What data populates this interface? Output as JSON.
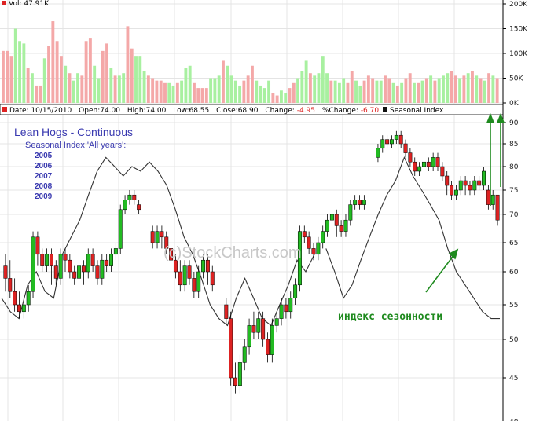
{
  "chart_data": {
    "type": "candlestick",
    "title": "Lean Hogs - Continuous",
    "subtitle": "Seasonal Index 'All years':",
    "legend_years": [
      "2005",
      "2006",
      "2007",
      "2008",
      "2009"
    ],
    "watermark": "(c)StockCharts.com",
    "annotation": "индекс сезонности",
    "volume_label": "Vol: 47.91K",
    "info_bar": {
      "date": "Date: 10/15/2010",
      "open": "Open:74.00",
      "high": "High:74.00",
      "low": "Low:68.55",
      "close": "Close:68.90",
      "change_label": "Change:",
      "change": "-4.95",
      "pct_label": "%Change:",
      "pct": "-6.70",
      "seasonal_label": "Seasonal Index"
    },
    "price_ticks": [
      "90",
      "85",
      "80",
      "75",
      "70",
      "65",
      "60",
      "55",
      "50",
      "45"
    ],
    "volume_ticks": [
      "200K",
      "150K",
      "100K",
      "50K",
      "0K"
    ],
    "price_axis_bottom_label": "40",
    "colors": {
      "up": "#22bb22",
      "down": "#dd2222",
      "vol_up": "#a8f0a0",
      "vol_down": "#f4a8a8",
      "seasonal": "#333333",
      "annotation": "#1e8a1e",
      "title": "#3a3ab0"
    },
    "volume": [
      {
        "v": 105,
        "up": false
      },
      {
        "v": 105,
        "up": false
      },
      {
        "v": 95,
        "up": false
      },
      {
        "v": 150,
        "up": true
      },
      {
        "v": 125,
        "up": true
      },
      {
        "v": 120,
        "up": true
      },
      {
        "v": 70,
        "up": false
      },
      {
        "v": 60,
        "up": true
      },
      {
        "v": 35,
        "up": false
      },
      {
        "v": 35,
        "up": false
      },
      {
        "v": 90,
        "up": true
      },
      {
        "v": 115,
        "up": false
      },
      {
        "v": 165,
        "up": false
      },
      {
        "v": 125,
        "up": false
      },
      {
        "v": 95,
        "up": false
      },
      {
        "v": 75,
        "up": true
      },
      {
        "v": 60,
        "up": false
      },
      {
        "v": 45,
        "up": true
      },
      {
        "v": 60,
        "up": true
      },
      {
        "v": 55,
        "up": false
      },
      {
        "v": 125,
        "up": false
      },
      {
        "v": 130,
        "up": false
      },
      {
        "v": 75,
        "up": true
      },
      {
        "v": 50,
        "up": true
      },
      {
        "v": 105,
        "up": false
      },
      {
        "v": 120,
        "up": false
      },
      {
        "v": 70,
        "up": true
      },
      {
        "v": 55,
        "up": false
      },
      {
        "v": 55,
        "up": true
      },
      {
        "v": 60,
        "up": true
      },
      {
        "v": 155,
        "up": false
      },
      {
        "v": 110,
        "up": false
      },
      {
        "v": 95,
        "up": true
      },
      {
        "v": 95,
        "up": true
      },
      {
        "v": 65,
        "up": true
      },
      {
        "v": 55,
        "up": false
      },
      {
        "v": 50,
        "up": false
      },
      {
        "v": 45,
        "up": false
      },
      {
        "v": 45,
        "up": false
      },
      {
        "v": 40,
        "up": false
      },
      {
        "v": 40,
        "up": true
      },
      {
        "v": 35,
        "up": true
      },
      {
        "v": 40,
        "up": false
      },
      {
        "v": 45,
        "up": true
      },
      {
        "v": 70,
        "up": true
      },
      {
        "v": 75,
        "up": true
      },
      {
        "v": 40,
        "up": false
      },
      {
        "v": 30,
        "up": false
      },
      {
        "v": 30,
        "up": false
      },
      {
        "v": 30,
        "up": false
      },
      {
        "v": 50,
        "up": true
      },
      {
        "v": 50,
        "up": true
      },
      {
        "v": 55,
        "up": true
      },
      {
        "v": 85,
        "up": false
      },
      {
        "v": 75,
        "up": true
      },
      {
        "v": 55,
        "up": true
      },
      {
        "v": 45,
        "up": true
      },
      {
        "v": 35,
        "up": true
      },
      {
        "v": 45,
        "up": false
      },
      {
        "v": 55,
        "up": false
      },
      {
        "v": 75,
        "up": false
      },
      {
        "v": 45,
        "up": true
      },
      {
        "v": 35,
        "up": true
      },
      {
        "v": 30,
        "up": true
      },
      {
        "v": 45,
        "up": true
      },
      {
        "v": 20,
        "up": false
      },
      {
        "v": 15,
        "up": false
      },
      {
        "v": 25,
        "up": true
      },
      {
        "v": 20,
        "up": true
      },
      {
        "v": 30,
        "up": false
      },
      {
        "v": 40,
        "up": false
      },
      {
        "v": 50,
        "up": true
      },
      {
        "v": 65,
        "up": true
      },
      {
        "v": 85,
        "up": true
      },
      {
        "v": 60,
        "up": false
      },
      {
        "v": 55,
        "up": true
      },
      {
        "v": 60,
        "up": true
      },
      {
        "v": 95,
        "up": true
      },
      {
        "v": 60,
        "up": true
      },
      {
        "v": 45,
        "up": false
      },
      {
        "v": 45,
        "up": true
      },
      {
        "v": 40,
        "up": true
      },
      {
        "v": 50,
        "up": true
      },
      {
        "v": 40,
        "up": false
      },
      {
        "v": 65,
        "up": false
      },
      {
        "v": 45,
        "up": true
      },
      {
        "v": 35,
        "up": true
      },
      {
        "v": 45,
        "up": false
      },
      {
        "v": 55,
        "up": false
      },
      {
        "v": 50,
        "up": false
      },
      {
        "v": 45,
        "up": true
      },
      {
        "v": 45,
        "up": true
      },
      {
        "v": 55,
        "up": false
      },
      {
        "v": 50,
        "up": false
      },
      {
        "v": 40,
        "up": true
      },
      {
        "v": 35,
        "up": false
      },
      {
        "v": 40,
        "up": true
      },
      {
        "v": 50,
        "up": false
      },
      {
        "v": 60,
        "up": false
      },
      {
        "v": 40,
        "up": true
      },
      {
        "v": 40,
        "up": false
      },
      {
        "v": 45,
        "up": true
      },
      {
        "v": 50,
        "up": false
      },
      {
        "v": 55,
        "up": true
      },
      {
        "v": 45,
        "up": false
      },
      {
        "v": 50,
        "up": true
      },
      {
        "v": 55,
        "up": true
      },
      {
        "v": 60,
        "up": true
      },
      {
        "v": 65,
        "up": false
      },
      {
        "v": 55,
        "up": false
      },
      {
        "v": 50,
        "up": true
      },
      {
        "v": 55,
        "up": false
      },
      {
        "v": 60,
        "up": true
      },
      {
        "v": 65,
        "up": false
      },
      {
        "v": 55,
        "up": true
      },
      {
        "v": 50,
        "up": false
      },
      {
        "v": 45,
        "up": true
      },
      {
        "v": 60,
        "up": false
      },
      {
        "v": 55,
        "up": true
      },
      {
        "v": 50,
        "up": false
      }
    ],
    "candles": [
      {
        "o": 61,
        "c": 59,
        "h": 63,
        "l": 57
      },
      {
        "o": 59,
        "c": 57,
        "h": 62,
        "l": 56
      },
      {
        "o": 57,
        "c": 55,
        "h": 59,
        "l": 54
      },
      {
        "o": 55,
        "c": 54,
        "h": 57,
        "l": 53
      },
      {
        "o": 54,
        "c": 55,
        "h": 56,
        "l": 53
      },
      {
        "o": 55,
        "c": 57,
        "h": 58,
        "l": 54
      },
      {
        "o": 57,
        "c": 66,
        "h": 67,
        "l": 56
      },
      {
        "o": 66,
        "c": 63,
        "h": 67,
        "l": 61
      },
      {
        "o": 63,
        "c": 61,
        "h": 64,
        "l": 60
      },
      {
        "o": 61,
        "c": 63,
        "h": 64,
        "l": 60
      },
      {
        "o": 63,
        "c": 61,
        "h": 64,
        "l": 58
      },
      {
        "o": 61,
        "c": 59,
        "h": 62,
        "l": 58
      },
      {
        "o": 59,
        "c": 63,
        "h": 64,
        "l": 58
      },
      {
        "o": 63,
        "c": 62,
        "h": 64,
        "l": 60
      },
      {
        "o": 62,
        "c": 60,
        "h": 63,
        "l": 59
      },
      {
        "o": 60,
        "c": 59,
        "h": 61,
        "l": 58
      },
      {
        "o": 59,
        "c": 61,
        "h": 62,
        "l": 58
      },
      {
        "o": 61,
        "c": 60,
        "h": 62,
        "l": 58
      },
      {
        "o": 60,
        "c": 63,
        "h": 64,
        "l": 59
      },
      {
        "o": 63,
        "c": 61,
        "h": 64,
        "l": 60
      },
      {
        "o": 61,
        "c": 59,
        "h": 62,
        "l": 58
      },
      {
        "o": 59,
        "c": 62,
        "h": 63,
        "l": 58
      },
      {
        "o": 62,
        "c": 61,
        "h": 63,
        "l": 60
      },
      {
        "o": 61,
        "c": 63,
        "h": 64,
        "l": 60
      },
      {
        "o": 63,
        "c": 64,
        "h": 65,
        "l": 62
      },
      {
        "o": 64,
        "c": 71,
        "h": 72,
        "l": 63
      },
      {
        "o": 71,
        "c": 73,
        "h": 74,
        "l": 70
      },
      {
        "o": 73,
        "c": 74,
        "h": 75,
        "l": 72
      },
      {
        "o": 74,
        "c": 73,
        "h": 75,
        "l": 72
      },
      {
        "o": 72,
        "c": 71,
        "h": 73,
        "l": 70
      },
      {
        "o": 67,
        "c": 65,
        "h": 68,
        "l": 64
      },
      {
        "o": 65,
        "c": 67,
        "h": 68,
        "l": 64
      },
      {
        "o": 67,
        "c": 66,
        "h": 68,
        "l": 64
      },
      {
        "o": 66,
        "c": 64,
        "h": 67,
        "l": 63
      },
      {
        "o": 64,
        "c": 62,
        "h": 65,
        "l": 61
      },
      {
        "o": 62,
        "c": 60,
        "h": 63,
        "l": 59
      },
      {
        "o": 60,
        "c": 58,
        "h": 62,
        "l": 57
      },
      {
        "o": 58,
        "c": 61,
        "h": 62,
        "l": 57
      },
      {
        "o": 61,
        "c": 59,
        "h": 62,
        "l": 58
      },
      {
        "o": 59,
        "c": 57,
        "h": 60,
        "l": 56
      },
      {
        "o": 57,
        "c": 60,
        "h": 61,
        "l": 56
      },
      {
        "o": 60,
        "c": 62,
        "h": 63,
        "l": 59
      },
      {
        "o": 62,
        "c": 60,
        "h": 63,
        "l": 58
      },
      {
        "o": 60,
        "c": 58,
        "h": 61,
        "l": 57
      },
      {
        "o": 55,
        "c": 53,
        "h": 56,
        "l": 52
      },
      {
        "o": 53,
        "c": 45,
        "h": 54,
        "l": 44
      },
      {
        "o": 45,
        "c": 44,
        "h": 47,
        "l": 43
      },
      {
        "o": 44,
        "c": 47,
        "h": 48,
        "l": 43
      },
      {
        "o": 47,
        "c": 49,
        "h": 50,
        "l": 46
      },
      {
        "o": 49,
        "c": 52,
        "h": 53,
        "l": 48
      },
      {
        "o": 52,
        "c": 51,
        "h": 54,
        "l": 50
      },
      {
        "o": 51,
        "c": 53,
        "h": 54,
        "l": 50
      },
      {
        "o": 53,
        "c": 50,
        "h": 54,
        "l": 49
      },
      {
        "o": 50,
        "c": 48,
        "h": 51,
        "l": 47
      },
      {
        "o": 48,
        "c": 52,
        "h": 53,
        "l": 47
      },
      {
        "o": 52,
        "c": 53,
        "h": 54,
        "l": 51
      },
      {
        "o": 53,
        "c": 55,
        "h": 56,
        "l": 52
      },
      {
        "o": 55,
        "c": 54,
        "h": 56,
        "l": 53
      },
      {
        "o": 54,
        "c": 56,
        "h": 57,
        "l": 53
      },
      {
        "o": 56,
        "c": 58,
        "h": 59,
        "l": 55
      },
      {
        "o": 58,
        "c": 67,
        "h": 68,
        "l": 57
      },
      {
        "o": 67,
        "c": 66,
        "h": 68,
        "l": 65
      },
      {
        "o": 66,
        "c": 64,
        "h": 67,
        "l": 63
      },
      {
        "o": 64,
        "c": 63,
        "h": 65,
        "l": 62
      },
      {
        "o": 63,
        "c": 65,
        "h": 66,
        "l": 62
      },
      {
        "o": 65,
        "c": 67,
        "h": 68,
        "l": 64
      },
      {
        "o": 67,
        "c": 69,
        "h": 70,
        "l": 66
      },
      {
        "o": 69,
        "c": 70,
        "h": 71,
        "l": 68
      },
      {
        "o": 70,
        "c": 68,
        "h": 71,
        "l": 66
      },
      {
        "o": 68,
        "c": 67,
        "h": 69,
        "l": 66
      },
      {
        "o": 67,
        "c": 69,
        "h": 70,
        "l": 66
      },
      {
        "o": 69,
        "c": 72,
        "h": 73,
        "l": 68
      },
      {
        "o": 72,
        "c": 73,
        "h": 74,
        "l": 71
      },
      {
        "o": 73,
        "c": 72,
        "h": 74,
        "l": 71
      },
      {
        "o": 72,
        "c": 73,
        "h": 74,
        "l": 71
      },
      {
        "o": 82,
        "c": 84,
        "h": 85,
        "l": 81
      },
      {
        "o": 84,
        "c": 86,
        "h": 87,
        "l": 83
      },
      {
        "o": 86,
        "c": 85,
        "h": 87,
        "l": 84
      },
      {
        "o": 85,
        "c": 86,
        "h": 87,
        "l": 84
      },
      {
        "o": 86,
        "c": 87,
        "h": 88,
        "l": 85
      },
      {
        "o": 87,
        "c": 85,
        "h": 88,
        "l": 84
      },
      {
        "o": 85,
        "c": 83,
        "h": 86,
        "l": 82
      },
      {
        "o": 83,
        "c": 81,
        "h": 84,
        "l": 80
      },
      {
        "o": 81,
        "c": 79,
        "h": 82,
        "l": 78
      },
      {
        "o": 79,
        "c": 80,
        "h": 81,
        "l": 78
      },
      {
        "o": 80,
        "c": 81,
        "h": 82,
        "l": 79
      },
      {
        "o": 81,
        "c": 80,
        "h": 82,
        "l": 79
      },
      {
        "o": 80,
        "c": 82,
        "h": 83,
        "l": 79
      },
      {
        "o": 82,
        "c": 80,
        "h": 83,
        "l": 79
      },
      {
        "o": 80,
        "c": 78,
        "h": 81,
        "l": 77
      },
      {
        "o": 78,
        "c": 76,
        "h": 79,
        "l": 74
      },
      {
        "o": 76,
        "c": 74,
        "h": 77,
        "l": 73
      },
      {
        "o": 74,
        "c": 75,
        "h": 76,
        "l": 73
      },
      {
        "o": 75,
        "c": 77,
        "h": 78,
        "l": 74
      },
      {
        "o": 77,
        "c": 76,
        "h": 78,
        "l": 74
      },
      {
        "o": 76,
        "c": 75,
        "h": 77,
        "l": 74
      },
      {
        "o": 75,
        "c": 77,
        "h": 78,
        "l": 74
      },
      {
        "o": 77,
        "c": 76,
        "h": 78,
        "l": 75
      },
      {
        "o": 76,
        "c": 79,
        "h": 80,
        "l": 75
      },
      {
        "o": 75,
        "c": 72,
        "h": 76,
        "l": 71
      },
      {
        "o": 72,
        "c": 74,
        "h": 75,
        "l": 71
      },
      {
        "o": 74,
        "c": 69,
        "h": 74,
        "l": 68
      }
    ],
    "candle_gaps_after": [
      29,
      43,
      74
    ],
    "seasonal_segments": [
      [
        [
          0,
          56
        ],
        [
          3,
          54
        ],
        [
          6,
          53
        ],
        [
          9,
          58
        ],
        [
          12,
          60
        ],
        [
          15,
          57
        ],
        [
          18,
          56
        ],
        [
          21,
          63
        ],
        [
          24,
          66
        ],
        [
          27,
          69
        ],
        [
          30,
          74
        ],
        [
          33,
          79
        ],
        [
          36,
          82
        ],
        [
          39,
          80
        ],
        [
          42,
          78
        ],
        [
          45,
          80
        ],
        [
          48,
          79
        ],
        [
          51,
          81
        ],
        [
          54,
          79
        ],
        [
          57,
          76
        ],
        [
          60,
          71
        ],
        [
          63,
          66
        ],
        [
          66,
          63
        ],
        [
          69,
          59
        ],
        [
          72,
          55
        ],
        [
          75,
          53
        ],
        [
          78,
          52
        ],
        [
          81,
          56
        ],
        [
          84,
          59
        ],
        [
          87,
          56
        ],
        [
          90,
          53
        ],
        [
          93,
          52
        ],
        [
          96,
          55
        ],
        [
          99,
          58
        ],
        [
          102,
          62
        ],
        [
          105,
          60
        ],
        [
          108,
          63
        ]
      ],
      [
        [
          112,
          64
        ],
        [
          115,
          60
        ],
        [
          118,
          56
        ],
        [
          121,
          58
        ],
        [
          124,
          62
        ],
        [
          127,
          66
        ],
        [
          130,
          70
        ],
        [
          133,
          74
        ],
        [
          136,
          77
        ],
        [
          139,
          82
        ],
        [
          142,
          78
        ],
        [
          145,
          75
        ],
        [
          148,
          72
        ],
        [
          151,
          69
        ],
        [
          154,
          64
        ],
        [
          157,
          60
        ],
        [
          160,
          58
        ],
        [
          163,
          56
        ],
        [
          166,
          54
        ],
        [
          169,
          53
        ],
        [
          172,
          53
        ]
      ]
    ],
    "seasonal_x_start": 0,
    "seasonal_x_end": 120
  }
}
